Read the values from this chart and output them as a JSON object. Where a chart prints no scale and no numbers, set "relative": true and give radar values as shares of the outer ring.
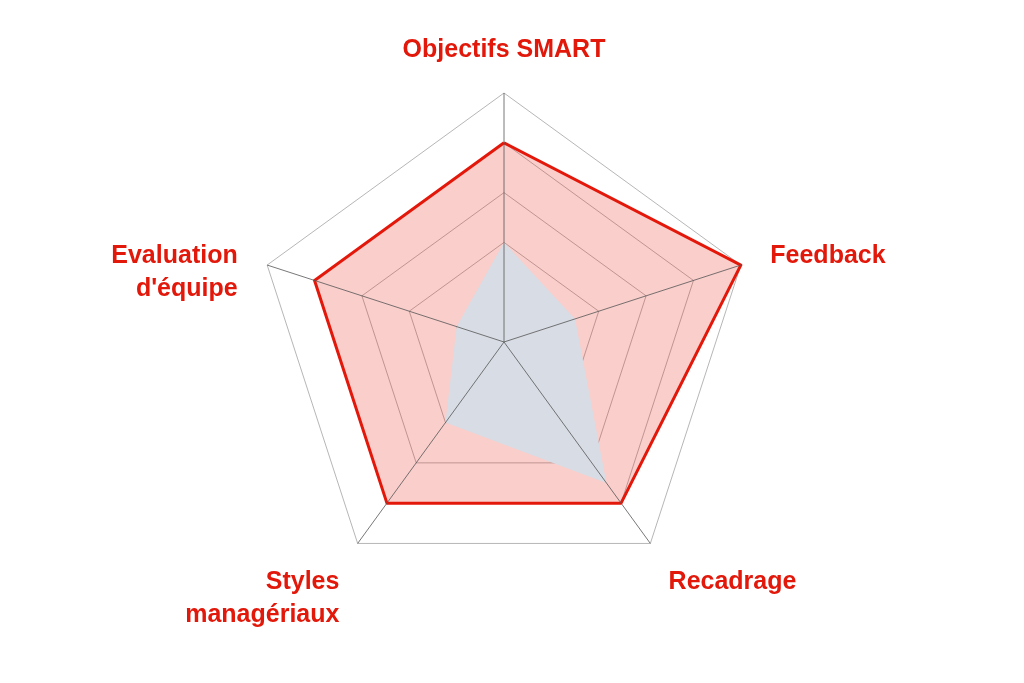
{
  "chart_data": {
    "type": "radar",
    "relative": true,
    "categories": [
      "Objectifs SMART",
      "Feedback",
      "Recadrage",
      "Styles managériaux",
      "Evaluation d'équipe"
    ],
    "series": [
      {
        "color": "#e3170a",
        "values": [
          0.8,
          1,
          0.8,
          0.8,
          0.8
        ]
      },
      {
        "type": "area",
        "color": "#d8dce4",
        "values": [
          0.4,
          0.3,
          0.7,
          0.4,
          0.2
        ]
      }
    ],
    "grid": true
  }
}
